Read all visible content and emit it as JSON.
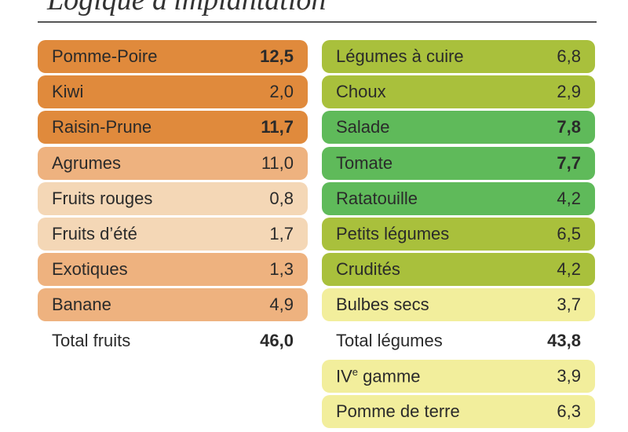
{
  "title": "Logique d'implantation",
  "columns": [
    {
      "rows": [
        {
          "label": "Pomme-Poire",
          "value": "12,5",
          "bold": true,
          "color": "#e08a3c"
        },
        {
          "label": "Kiwi",
          "value": "2,0",
          "bold": false,
          "color": "#e08a3c"
        },
        {
          "label": "Raisin-Prune",
          "value": "11,7",
          "bold": true,
          "color": "#e08a3c"
        },
        {
          "label": "Agrumes",
          "value": "11,0",
          "bold": false,
          "color": "#eeb27f"
        },
        {
          "label": "Fruits rouges",
          "value": "0,8",
          "bold": false,
          "color": "#f4d7b6"
        },
        {
          "label": "Fruits d’été",
          "value": "1,7",
          "bold": false,
          "color": "#f4d7b6"
        },
        {
          "label": "Exotiques",
          "value": "1,3",
          "bold": false,
          "color": "#eeb27f"
        },
        {
          "label": "Banane",
          "value": "4,9",
          "bold": false,
          "color": "#eeb27f"
        },
        {
          "label": "Total fruits",
          "value": "46,0",
          "bold": true,
          "color": null
        }
      ]
    },
    {
      "rows": [
        {
          "label": "Légumes à cuire",
          "value": "6,8",
          "bold": false,
          "color": "#a9c03c"
        },
        {
          "label": "Choux",
          "value": "2,9",
          "bold": false,
          "color": "#a9c03c"
        },
        {
          "label": "Salade",
          "value": "7,8",
          "bold": true,
          "color": "#5fba5a"
        },
        {
          "label": "Tomate",
          "value": "7,7",
          "bold": true,
          "color": "#5fba5a"
        },
        {
          "label": "Ratatouille",
          "value": "4,2",
          "bold": false,
          "color": "#5fba5a"
        },
        {
          "label": "Petits légumes",
          "value": "6,5",
          "bold": false,
          "color": "#a9c03c"
        },
        {
          "label": "Crudités",
          "value": "4,2",
          "bold": false,
          "color": "#a9c03c"
        },
        {
          "label": "Bulbes secs",
          "value": "3,7",
          "bold": false,
          "color": "#f2ee9c"
        },
        {
          "label": "Total légumes",
          "value": "43,8",
          "bold": true,
          "color": null
        },
        {
          "label": [
            "IV",
            "e",
            " gamme"
          ],
          "value": "3,9",
          "bold": false,
          "color": "#f2ee9c"
        },
        {
          "label": "Pomme de terre",
          "value": "6,3",
          "bold": false,
          "color": "#f2ee9c"
        }
      ]
    }
  ]
}
